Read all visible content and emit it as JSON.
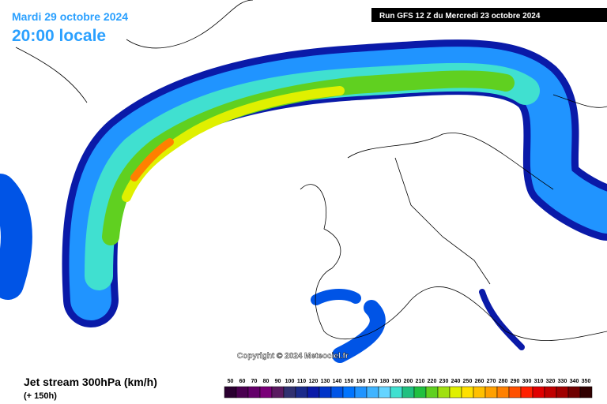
{
  "header": {
    "date": "Mardi 29 octobre 2024",
    "time": "20:00 locale",
    "run": "Run GFS 12 Z du Mercredi 23 octobre 2024"
  },
  "copyright": "Copyright © 2024 Meteociel.fr",
  "legend": {
    "title": "Jet stream 300hPa (km/h)",
    "lead": "(+ 150h)",
    "values": [
      50,
      60,
      70,
      80,
      90,
      100,
      110,
      120,
      130,
      140,
      150,
      160,
      170,
      180,
      190,
      200,
      210,
      220,
      230,
      240,
      250,
      260,
      270,
      280,
      290,
      300,
      310,
      320,
      330,
      340,
      350
    ],
    "colors": [
      "#2a0030",
      "#4a0050",
      "#64006a",
      "#7a0078",
      "#5a1a60",
      "#303070",
      "#1a2a8a",
      "#0a1aa8",
      "#0034c8",
      "#0054e6",
      "#0074ff",
      "#2094ff",
      "#40b4ff",
      "#64d4ff",
      "#40e0d0",
      "#20c080",
      "#20c040",
      "#60d020",
      "#a0e010",
      "#e0f000",
      "#ffe000",
      "#ffc000",
      "#ffa000",
      "#ff8000",
      "#ff5000",
      "#ff2000",
      "#e00000",
      "#c00000",
      "#a00000",
      "#700000",
      "#300000"
    ]
  }
}
